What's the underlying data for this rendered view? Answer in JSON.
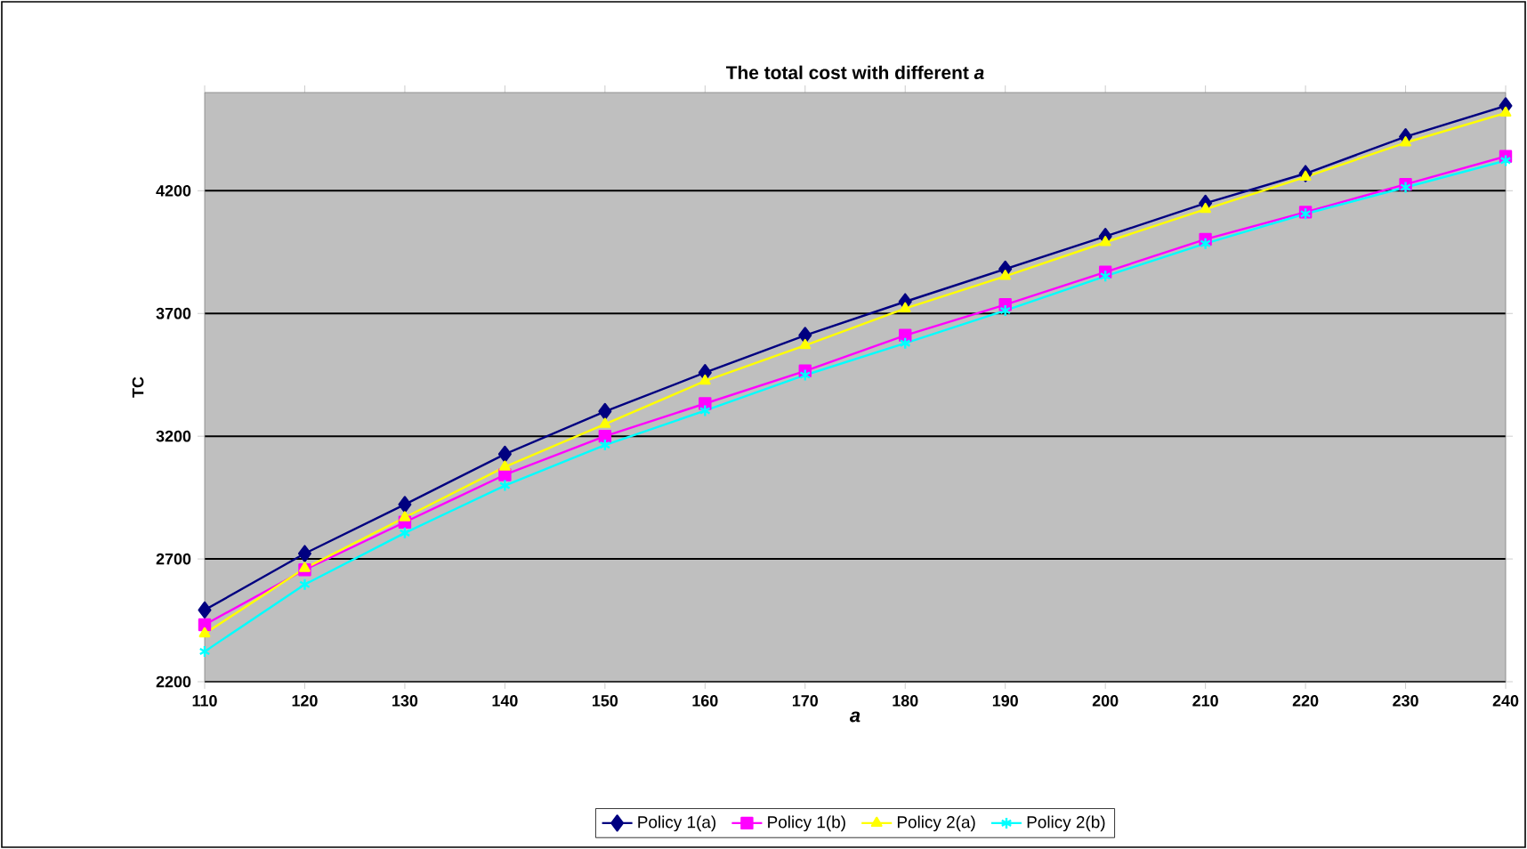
{
  "chart_data": {
    "type": "line",
    "title": "The total cost with different *a*",
    "xlabel": "a",
    "ylabel": "TC",
    "x": [
      110,
      120,
      130,
      140,
      150,
      160,
      170,
      180,
      190,
      200,
      210,
      220,
      230,
      240
    ],
    "series": [
      {
        "name": "Policy 1(a)",
        "color": "#000080",
        "marker": "diamond",
        "values": [
          2492,
          2722,
          2922,
          3127,
          3301,
          3459,
          3611,
          3748,
          3881,
          4014,
          4149,
          4270,
          4420,
          4546
        ]
      },
      {
        "name": "Policy 1(b)",
        "color": "#ff00ff",
        "marker": "square",
        "values": [
          2432,
          2656,
          2850,
          3043,
          3200,
          3333,
          3466,
          3611,
          3736,
          3869,
          4002,
          4113,
          4226,
          4340
        ]
      },
      {
        "name": "Policy 2(a)",
        "color": "#ffff00",
        "marker": "triangle",
        "values": [
          2396,
          2662,
          2869,
          3075,
          3249,
          3425,
          3570,
          3720,
          3852,
          3990,
          4125,
          4256,
          4396,
          4517
        ]
      },
      {
        "name": "Policy 2(b)",
        "color": "#00ffff",
        "marker": "cross",
        "values": [
          2323,
          2596,
          2806,
          2999,
          3164,
          3304,
          3449,
          3579,
          3712,
          3852,
          3985,
          4106,
          4214,
          4323
        ]
      }
    ],
    "xlim": [
      110,
      240
    ],
    "xticks": [
      110,
      120,
      130,
      140,
      150,
      160,
      170,
      180,
      190,
      200,
      210,
      220,
      230,
      240
    ],
    "ylim": [
      2200,
      4600
    ],
    "yticks": [
      2200,
      2700,
      3200,
      3700,
      4200
    ],
    "grid": "y",
    "legend": "bottom",
    "line_style": "solid"
  }
}
